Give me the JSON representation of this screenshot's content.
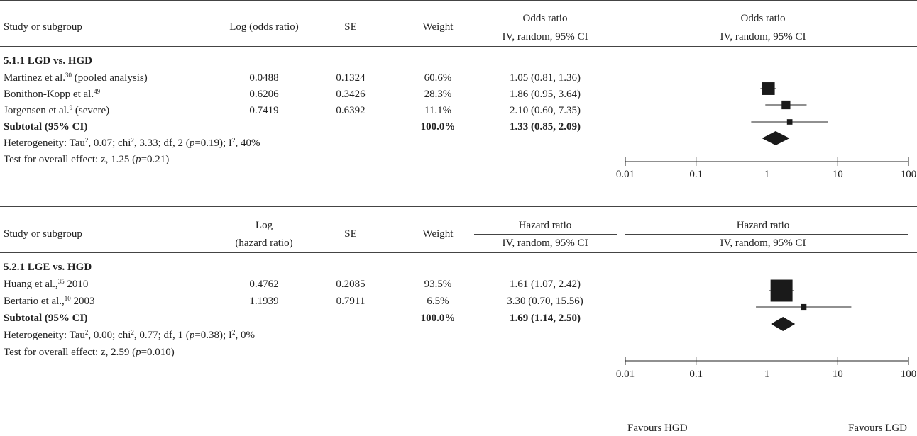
{
  "chart_data": [
    {
      "type": "forest",
      "columns": {
        "study": "Study or subgroup",
        "estimate": "Log (odds ratio)",
        "estimate_line2": "",
        "se": "SE",
        "weight": "Weight",
        "ci_title": "Odds ratio",
        "ci_sub": "IV, random, 95% CI",
        "plot_title": "Odds ratio",
        "plot_sub": "IV, random, 95% CI"
      },
      "subgroup": "5.1.1 LGD vs. HGD",
      "studies": [
        {
          "name": "Martinez et al.",
          "ref": "30",
          "suffix": " (pooled analysis)",
          "estimate": "0.0488",
          "se": "0.1324",
          "weight_label": "60.6%",
          "ci_label": "1.05 (0.81, 1.36)",
          "ratio": 1.05,
          "lower": 0.81,
          "upper": 1.36,
          "weight": 60.6
        },
        {
          "name": "Bonithon-Kopp et al.",
          "ref": "49",
          "suffix": "",
          "estimate": "0.6206",
          "se": "0.3426",
          "weight_label": "28.3%",
          "ci_label": "1.86 (0.95, 3.64)",
          "ratio": 1.86,
          "lower": 0.95,
          "upper": 3.64,
          "weight": 28.3
        },
        {
          "name": "Jorgensen et al.",
          "ref": "9",
          "suffix": " (severe)",
          "estimate": "0.7419",
          "se": "0.6392",
          "weight_label": "11.1%",
          "ci_label": "2.10 (0.60, 7.35)",
          "ratio": 2.1,
          "lower": 0.6,
          "upper": 7.35,
          "weight": 11.1
        }
      ],
      "subtotal": {
        "label": "Subtotal (95% CI)",
        "weight_label": "100.0%",
        "ci_label": "1.33 (0.85, 2.09)",
        "ratio": 1.33,
        "lower": 0.85,
        "upper": 2.09
      },
      "heterogeneity": {
        "a": "Heterogeneity: Tau",
        "b": ", 0.07; chi",
        "c": ", 3.33; df, 2 (",
        "p": "p",
        "d": "=0.19); I",
        "e": ", 40%",
        "sup": "2"
      },
      "overall": {
        "a": "Test for overall effect: z, 1.25 (",
        "p": "p",
        "b": "=0.21)"
      },
      "x_axis": {
        "scale": "log",
        "range": [
          0.01,
          100
        ],
        "ticks": [
          0.01,
          0.1,
          1,
          10,
          100
        ],
        "tick_labels": [
          "0.01",
          "0.1",
          "1",
          "10",
          "100"
        ]
      }
    },
    {
      "type": "forest",
      "columns": {
        "study": "Study or subgroup",
        "estimate": "Log",
        "estimate_line2": "(hazard ratio)",
        "se": "SE",
        "weight": "Weight",
        "ci_title": "Hazard ratio",
        "ci_sub": "IV, random, 95% CI",
        "plot_title": "Hazard ratio",
        "plot_sub": "IV, random, 95% CI"
      },
      "subgroup": "5.2.1 LGE vs. HGD",
      "studies": [
        {
          "name": "Huang et al.,",
          "ref": "35",
          "suffix": " 2010",
          "estimate": "0.4762",
          "se": "0.2085",
          "weight_label": "93.5%",
          "ci_label": "1.61 (1.07, 2.42)",
          "ratio": 1.61,
          "lower": 1.07,
          "upper": 2.42,
          "weight": 93.5
        },
        {
          "name": "Bertario et al.,",
          "ref": "10",
          "suffix": " 2003",
          "estimate": "1.1939",
          "se": "0.7911",
          "weight_label": "6.5%",
          "ci_label": "3.30 (0.70, 15.56)",
          "ratio": 3.3,
          "lower": 0.7,
          "upper": 15.56,
          "weight": 6.5
        }
      ],
      "subtotal": {
        "label": "Subtotal (95% CI)",
        "weight_label": "100.0%",
        "ci_label": "1.69 (1.14, 2.50)",
        "ratio": 1.69,
        "lower": 1.14,
        "upper": 2.5
      },
      "heterogeneity": {
        "a": "Heterogeneity: Tau",
        "b": ", 0.00; chi",
        "c": ", 0.77; df, 1 (",
        "p": "p",
        "d": "=0.38); I",
        "e": ", 0%",
        "sup": "2"
      },
      "overall": {
        "a": "Test for overall effect: z, 2.59 (",
        "p": "p",
        "b": "=0.010)"
      },
      "x_axis": {
        "scale": "log",
        "range": [
          0.01,
          100
        ],
        "ticks": [
          0.01,
          0.1,
          1,
          10,
          100
        ],
        "tick_labels": [
          "0.01",
          "0.1",
          "1",
          "10",
          "100"
        ]
      },
      "favours": {
        "left": "Favours HGD",
        "right": "Favours LGD"
      }
    }
  ]
}
